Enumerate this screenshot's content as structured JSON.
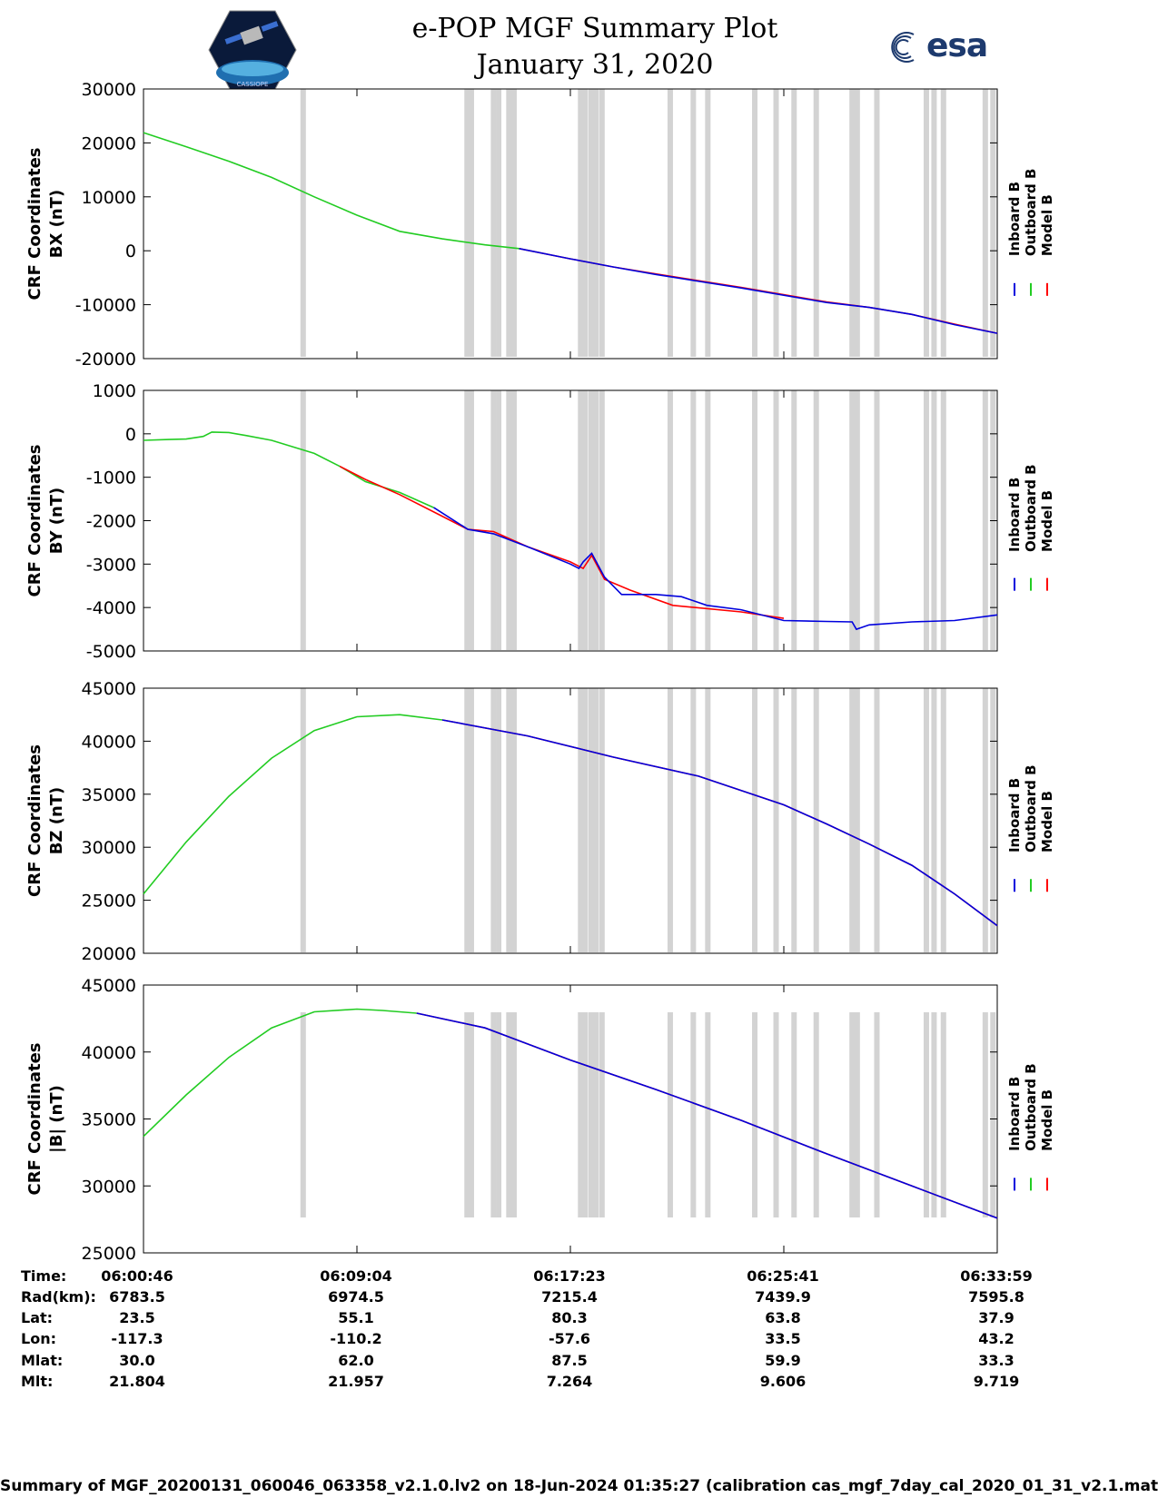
{
  "header": {
    "title": "e-POP MGF Summary Plot",
    "date": "January 31, 2020",
    "left_logo_text": "CASSIOPE",
    "right_logo_text": "esa"
  },
  "chart_data": [
    {
      "type": "line",
      "ylabel_line1": "CRF Coordinates",
      "ylabel_line2": "BX (nT)",
      "ylim": [
        -20000,
        30000
      ],
      "yticks": [
        30000,
        20000,
        10000,
        0,
        -10000,
        -20000
      ],
      "ytick_labels": [
        "30000",
        "20000",
        "10000",
        "0",
        "-10000",
        "-20000"
      ],
      "legend": [
        "Inboard B",
        "Outboard B",
        "Model B"
      ],
      "series": [
        {
          "name": "Outboard B",
          "color": "#22cc22",
          "x": [
            0,
            0.05,
            0.1,
            0.15,
            0.2,
            0.25,
            0.3,
            0.35,
            0.4,
            0.44
          ],
          "y": [
            21900,
            19300,
            16600,
            13600,
            10000,
            6600,
            3600,
            2200,
            1100,
            400
          ]
        },
        {
          "name": "Model B",
          "color": "#ff0000",
          "x": [
            0.44,
            0.5,
            0.55,
            0.6,
            0.7,
            0.8,
            0.85,
            0.9,
            0.95,
            1.0
          ],
          "y": [
            400,
            -1500,
            -3000,
            -4300,
            -6800,
            -9500,
            -10500,
            -11800,
            -13600,
            -15300
          ]
        },
        {
          "name": "Inboard B",
          "color": "#0000dd",
          "x": [
            0.44,
            0.5,
            0.55,
            0.6,
            0.7,
            0.8,
            0.85,
            0.9,
            0.95,
            1.0
          ],
          "y": [
            400,
            -1500,
            -3000,
            -4400,
            -6900,
            -9600,
            -10500,
            -11800,
            -13700,
            -15300
          ]
        }
      ]
    },
    {
      "type": "line",
      "ylabel_line1": "CRF Coordinates",
      "ylabel_line2": "BY (nT)",
      "ylim": [
        -5000,
        1000
      ],
      "yticks": [
        1000,
        0,
        -1000,
        -2000,
        -3000,
        -4000,
        -5000
      ],
      "ytick_labels": [
        "1000",
        "0",
        "-1000",
        "-2000",
        "-3000",
        "-4000",
        "-5000"
      ],
      "legend": [
        "Inboard B",
        "Outboard B",
        "Model B"
      ],
      "series": [
        {
          "name": "Outboard B",
          "color": "#22cc22",
          "x": [
            0,
            0.03,
            0.05,
            0.07,
            0.08,
            0.1,
            0.12,
            0.15,
            0.2,
            0.23,
            0.26,
            0.3,
            0.34
          ],
          "y": [
            -150,
            -130,
            -120,
            -60,
            40,
            30,
            -40,
            -150,
            -450,
            -750,
            -1100,
            -1350,
            -1700
          ]
        },
        {
          "name": "Model B",
          "color": "#ff0000",
          "x": [
            0.23,
            0.26,
            0.3,
            0.34,
            0.38,
            0.41,
            0.45,
            0.5,
            0.515,
            0.525,
            0.54,
            0.57,
            0.62,
            0.7,
            0.75
          ],
          "y": [
            -750,
            -1050,
            -1400,
            -1800,
            -2200,
            -2250,
            -2600,
            -2950,
            -3100,
            -2800,
            -3350,
            -3600,
            -3950,
            -4100,
            -4250
          ]
        },
        {
          "name": "Inboard B",
          "color": "#0000dd",
          "x": [
            0.34,
            0.38,
            0.41,
            0.45,
            0.5,
            0.51,
            0.515,
            0.525,
            0.54,
            0.56,
            0.6,
            0.63,
            0.66,
            0.7,
            0.75,
            0.8,
            0.83,
            0.835,
            0.85,
            0.9,
            0.95,
            1.0
          ],
          "y": [
            -1700,
            -2200,
            -2300,
            -2600,
            -3000,
            -3100,
            -2950,
            -2750,
            -3300,
            -3700,
            -3700,
            -3750,
            -3950,
            -4050,
            -4300,
            -4320,
            -4330,
            -4500,
            -4400,
            -4330,
            -4300,
            -4170
          ]
        }
      ]
    },
    {
      "type": "line",
      "ylabel_line1": "CRF Coordinates",
      "ylabel_line2": "BZ (nT)",
      "ylim": [
        20000,
        45000
      ],
      "yticks": [
        45000,
        40000,
        35000,
        30000,
        25000,
        20000
      ],
      "ytick_labels": [
        "45000",
        "40000",
        "35000",
        "30000",
        "25000",
        "20000"
      ],
      "legend": [
        "Inboard B",
        "Outboard B",
        "Model B"
      ],
      "series": [
        {
          "name": "Outboard B",
          "color": "#22cc22",
          "x": [
            0,
            0.05,
            0.1,
            0.15,
            0.2,
            0.25,
            0.3,
            0.35
          ],
          "y": [
            25600,
            30500,
            34800,
            38400,
            41000,
            42300,
            42500,
            42000
          ]
        },
        {
          "name": "Model B",
          "color": "#ff0000",
          "x": [
            0.35,
            0.45,
            0.55,
            0.65,
            0.75,
            0.8,
            0.85,
            0.9,
            0.95,
            1.0
          ],
          "y": [
            42000,
            40500,
            38500,
            36700,
            34000,
            32200,
            30300,
            28300,
            25600,
            22600
          ]
        },
        {
          "name": "Inboard B",
          "color": "#0000dd",
          "x": [
            0.35,
            0.45,
            0.55,
            0.65,
            0.75,
            0.8,
            0.85,
            0.9,
            0.95,
            1.0
          ],
          "y": [
            42000,
            40500,
            38500,
            36700,
            34000,
            32200,
            30300,
            28300,
            25600,
            22600
          ]
        }
      ]
    },
    {
      "type": "line",
      "ylabel_line1": "CRF Coordinates",
      "ylabel_line2": "|B| (nT)",
      "ylim": [
        25000,
        45000
      ],
      "yticks": [
        45000,
        40000,
        35000,
        30000,
        25000
      ],
      "ytick_labels": [
        "45000",
        "40000",
        "35000",
        "30000",
        "25000"
      ],
      "legend": [
        "Inboard B",
        "Outboard B",
        "Model B"
      ],
      "series": [
        {
          "name": "Outboard B",
          "color": "#22cc22",
          "x": [
            0,
            0.05,
            0.1,
            0.15,
            0.2,
            0.25,
            0.28,
            0.32
          ],
          "y": [
            33700,
            36800,
            39600,
            41800,
            43000,
            43200,
            43100,
            42900
          ]
        },
        {
          "name": "Model B",
          "color": "#ff0000",
          "x": [
            0.32,
            0.4,
            0.5,
            0.6,
            0.7,
            0.8,
            0.9,
            1.0
          ],
          "y": [
            42900,
            41800,
            39400,
            37200,
            34900,
            32400,
            30000,
            27600
          ]
        },
        {
          "name": "Inboard B",
          "color": "#0000dd",
          "x": [
            0.32,
            0.4,
            0.5,
            0.6,
            0.7,
            0.8,
            0.9,
            1.0
          ],
          "y": [
            42900,
            41800,
            39400,
            37200,
            34900,
            32400,
            30000,
            27600
          ]
        }
      ]
    }
  ],
  "gray_bands_x": [
    0.187,
    0.379,
    0.384,
    0.41,
    0.416,
    0.428,
    0.434,
    0.512,
    0.517,
    0.524,
    0.53,
    0.537,
    0.617,
    0.644,
    0.661,
    0.716,
    0.741,
    0.762,
    0.788,
    0.83,
    0.836,
    0.859,
    0.917,
    0.926,
    0.937,
    0.986,
    0.995
  ],
  "table": {
    "labels": [
      "Time:",
      "Rad(km):",
      "Lat:",
      "Lon:",
      "Mlat:",
      "Mlt:"
    ],
    "columns": [
      [
        "06:00:46",
        "6783.5",
        "23.5",
        "-117.3",
        "30.0",
        "21.804"
      ],
      [
        "06:09:04",
        "6974.5",
        "55.1",
        "-110.2",
        "62.0",
        "21.957"
      ],
      [
        "06:17:23",
        "7215.4",
        "80.3",
        "-57.6",
        "87.5",
        "7.264"
      ],
      [
        "06:25:41",
        "7439.9",
        "63.8",
        "33.5",
        "59.9",
        "9.606"
      ],
      [
        "06:33:59",
        "7595.8",
        "37.9",
        "43.2",
        "33.3",
        "9.719"
      ]
    ]
  },
  "footer": "Summary of MGF_20200131_060046_063358_v2.1.0.lv2 on 18-Jun-2024 01:35:27 (calibration cas_mgf_7day_cal_2020_01_31_v2.1.mat )"
}
